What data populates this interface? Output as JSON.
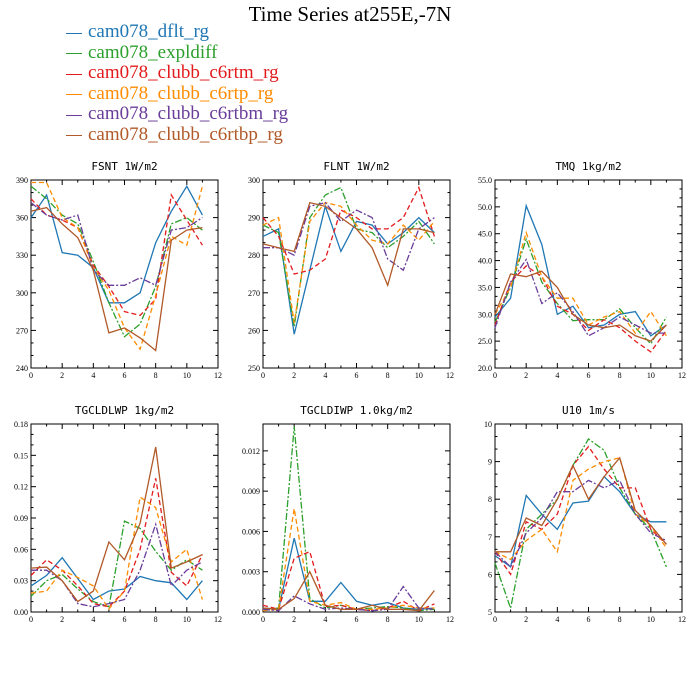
{
  "page": {
    "title": "Time Series at255E,-7N"
  },
  "legend": [
    {
      "name": "cam078_dflt_rg",
      "color": "#1f77b4",
      "dash": "solid"
    },
    {
      "name": "cam078_expldiff",
      "color": "#2ca02c",
      "dash": "dashdot"
    },
    {
      "name": "cam078_clubb_c6rtm_rg",
      "color": "#e31a1c",
      "dash": "dash"
    },
    {
      "name": "cam078_clubb_c6rtp_rg",
      "color": "#ff8c00",
      "dash": "dash"
    },
    {
      "name": "cam078_clubb_c6rtbm_rg",
      "color": "#6a3d9a",
      "dash": "dashdot"
    },
    {
      "name": "cam078_clubb_c6rtbp_rg",
      "color": "#b15928",
      "dash": "solid"
    }
  ],
  "chart_data": [
    {
      "type": "line",
      "title": "FSNT  1W/m2",
      "x": [
        0,
        1,
        2,
        3,
        4,
        5,
        6,
        7,
        8,
        9,
        10,
        11
      ],
      "xlim": [
        0,
        12
      ],
      "xticks": [
        0,
        2,
        4,
        6,
        8,
        10,
        12
      ],
      "ylim": [
        240,
        390
      ],
      "yticks": [
        240,
        270,
        300,
        330,
        360,
        390
      ],
      "yticklabels": [
        "240",
        "270",
        "300",
        "330",
        "360",
        "390"
      ],
      "series": [
        {
          "name": "cam078_dflt_rg",
          "values": [
            360,
            378,
            332,
            330,
            320,
            292,
            292,
            300,
            340,
            365,
            385,
            362
          ]
        },
        {
          "name": "cam078_expldiff",
          "values": [
            385,
            375,
            362,
            355,
            325,
            292,
            265,
            275,
            305,
            355,
            360,
            350
          ]
        },
        {
          "name": "cam078_clubb_c6rtm_rg",
          "values": [
            375,
            362,
            358,
            352,
            322,
            305,
            285,
            282,
            295,
            378,
            358,
            338
          ]
        },
        {
          "name": "cam078_clubb_c6rtp_rg",
          "values": [
            388,
            388,
            360,
            352,
            320,
            302,
            272,
            255,
            298,
            345,
            338,
            385
          ]
        },
        {
          "name": "cam078_clubb_c6rtbm_rg",
          "values": [
            372,
            362,
            358,
            362,
            318,
            306,
            306,
            312,
            306,
            350,
            352,
            360
          ]
        },
        {
          "name": "cam078_clubb_c6rtbp_rg",
          "values": [
            365,
            368,
            355,
            344,
            318,
            268,
            272,
            264,
            254,
            342,
            350,
            352
          ]
        }
      ]
    },
    {
      "type": "line",
      "title": "FLNT  1W/m2",
      "x": [
        0,
        1,
        2,
        3,
        4,
        5,
        6,
        7,
        8,
        9,
        10,
        11
      ],
      "xlim": [
        0,
        12
      ],
      "xticks": [
        0,
        2,
        4,
        6,
        8,
        10,
        12
      ],
      "ylim": [
        250,
        300
      ],
      "yticks": [
        250,
        260,
        270,
        280,
        290,
        300
      ],
      "yticklabels": [
        "250",
        "260",
        "270",
        "280",
        "290",
        "300"
      ],
      "series": [
        {
          "name": "cam078_dflt_rg",
          "values": [
            285,
            287,
            259,
            276,
            293,
            281,
            289,
            288,
            283,
            286,
            290,
            286
          ]
        },
        {
          "name": "cam078_expldiff",
          "values": [
            288,
            286,
            261,
            290,
            296,
            298,
            287,
            286,
            282,
            285,
            289,
            283
          ]
        },
        {
          "name": "cam078_clubb_c6rtm_rg",
          "values": [
            290,
            285,
            275,
            276,
            279,
            292,
            290,
            287,
            287,
            290,
            298,
            285
          ]
        },
        {
          "name": "cam078_clubb_c6rtp_rg",
          "values": [
            288,
            290,
            262,
            289,
            294,
            293,
            288,
            284,
            283,
            288,
            284,
            289
          ]
        },
        {
          "name": "cam078_clubb_c6rtbm_rg",
          "values": [
            282,
            282,
            280,
            293,
            294,
            289,
            292,
            290,
            279,
            276,
            287,
            290
          ]
        },
        {
          "name": "cam078_clubb_c6rtbp_rg",
          "values": [
            283,
            282,
            281,
            294,
            293,
            290,
            287,
            282,
            272,
            287,
            287,
            286
          ]
        }
      ]
    },
    {
      "type": "line",
      "title": "TMQ  1kg/m2",
      "x": [
        0,
        1,
        2,
        3,
        4,
        5,
        6,
        7,
        8,
        9,
        10,
        11
      ],
      "xlim": [
        0,
        12
      ],
      "xticks": [
        0,
        2,
        4,
        6,
        8,
        10,
        12
      ],
      "ylim": [
        20,
        55
      ],
      "yticks": [
        20,
        25,
        30,
        35,
        40,
        45,
        50,
        55
      ],
      "yticklabels": [
        "20.0",
        "25.0",
        "30.0",
        "35.0",
        "40.0",
        "45.0",
        "50.0",
        "55.0"
      ],
      "series": [
        {
          "name": "cam078_dflt_rg",
          "values": [
            29.5,
            33,
            50.2,
            43,
            30,
            31.5,
            27.5,
            28,
            30,
            30.5,
            26,
            28
          ]
        },
        {
          "name": "cam078_expldiff",
          "values": [
            28.5,
            35,
            44,
            36,
            32,
            28.8,
            29,
            29,
            31,
            27.5,
            24.5,
            29.5
          ]
        },
        {
          "name": "cam078_clubb_c6rtm_rg",
          "values": [
            28,
            36,
            39,
            37,
            31.5,
            30,
            27,
            29,
            27.5,
            25,
            23,
            27
          ]
        },
        {
          "name": "cam078_clubb_c6rtp_rg",
          "values": [
            30,
            35,
            45.2,
            37,
            33,
            33,
            28,
            29.5,
            30.5,
            26.5,
            30.5,
            26
          ]
        },
        {
          "name": "cam078_clubb_c6rtbm_rg",
          "values": [
            27.5,
            36,
            40.2,
            32,
            34,
            30.5,
            26,
            27.5,
            29.5,
            28,
            26.5,
            26.5
          ]
        },
        {
          "name": "cam078_clubb_c6rtbp_rg",
          "values": [
            30,
            37.5,
            37,
            38,
            35,
            30,
            28,
            27.5,
            28,
            26,
            25,
            28
          ]
        }
      ]
    },
    {
      "type": "line",
      "title": "TGCLDLWP  1kg/m2",
      "x": [
        0,
        1,
        2,
        3,
        4,
        5,
        6,
        7,
        8,
        9,
        10,
        11
      ],
      "xlim": [
        0,
        12
      ],
      "xticks": [
        0,
        2,
        4,
        6,
        8,
        10,
        12
      ],
      "ylim": [
        0,
        0.18
      ],
      "yticks": [
        0,
        0.03,
        0.06,
        0.09,
        0.12,
        0.15,
        0.18
      ],
      "yticklabels": [
        "0.00",
        "0.03",
        "0.06",
        "0.09",
        "0.12",
        "0.15",
        "0.18"
      ],
      "series": [
        {
          "name": "cam078_dflt_rg",
          "values": [
            0.025,
            0.035,
            0.052,
            0.032,
            0.012,
            0.02,
            0.022,
            0.034,
            0.03,
            0.028,
            0.012,
            0.03
          ]
        },
        {
          "name": "cam078_expldiff",
          "values": [
            0.015,
            0.03,
            0.036,
            0.022,
            0.01,
            0.005,
            0.087,
            0.08,
            0.058,
            0.04,
            0.05,
            0.04
          ]
        },
        {
          "name": "cam078_clubb_c6rtm_rg",
          "values": [
            0.035,
            0.05,
            0.04,
            0.025,
            0.008,
            0.005,
            0.02,
            0.06,
            0.128,
            0.038,
            0.025,
            0.055
          ]
        },
        {
          "name": "cam078_clubb_c6rtp_rg",
          "values": [
            0.018,
            0.02,
            0.04,
            0.033,
            0.025,
            0.003,
            0.02,
            0.11,
            0.1,
            0.048,
            0.06,
            0.012
          ]
        },
        {
          "name": "cam078_clubb_c6rtbm_rg",
          "values": [
            0.04,
            0.04,
            0.03,
            0.008,
            0.005,
            0.008,
            0.012,
            0.04,
            0.084,
            0.025,
            0.04,
            0.048
          ]
        },
        {
          "name": "cam078_clubb_c6rtbp_rg",
          "values": [
            0.042,
            0.043,
            0.03,
            0.01,
            0.02,
            0.067,
            0.05,
            0.085,
            0.158,
            0.042,
            0.048,
            0.055
          ]
        }
      ]
    },
    {
      "type": "line",
      "title": "TGCLDIWP  1.0kg/m2",
      "x": [
        0,
        1,
        2,
        3,
        4,
        5,
        6,
        7,
        8,
        9,
        10,
        11
      ],
      "xlim": [
        0,
        12
      ],
      "xticks": [
        0,
        2,
        4,
        6,
        8,
        10,
        12
      ],
      "ylim": [
        0,
        0.014
      ],
      "yticks": [
        0,
        0.003,
        0.006,
        0.009,
        0.012
      ],
      "yticklabels": [
        "0.000",
        "0.003",
        "0.006",
        "0.009",
        "0.012"
      ],
      "series": [
        {
          "name": "cam078_dflt_rg",
          "values": [
            0.0003,
            0.0002,
            0.0055,
            0.0008,
            0.0008,
            0.0022,
            0.0008,
            0.0005,
            0.0007,
            0.0003,
            0.0002,
            0.0003
          ]
        },
        {
          "name": "cam078_expldiff",
          "values": [
            0.0002,
            0.0003,
            0.0138,
            0.001,
            0.0003,
            0.0005,
            0.0002,
            0.0003,
            0.0004,
            0.0003,
            0.0001,
            0.0002
          ]
        },
        {
          "name": "cam078_clubb_c6rtm_rg",
          "values": [
            0.0005,
            0.0002,
            0.004,
            0.0045,
            0.0004,
            0.0005,
            0.0002,
            0.0001,
            0.0003,
            0.0008,
            0.0001,
            0.0006
          ]
        },
        {
          "name": "cam078_clubb_c6rtp_rg",
          "values": [
            0.0001,
            0.0002,
            0.0077,
            0.0008,
            0.0005,
            0.0007,
            0.0002,
            0.0002,
            0.0003,
            0.0005,
            0.0003,
            0.0003
          ]
        },
        {
          "name": "cam078_clubb_c6rtbm_rg",
          "values": [
            0.0002,
            0.0001,
            0.0012,
            0.0006,
            0.0002,
            0.0003,
            0.0002,
            0.0001,
            0.0002,
            0.0019,
            0.0003,
            0.0002
          ]
        },
        {
          "name": "cam078_clubb_c6rtbp_rg",
          "values": [
            0.0003,
            0.0002,
            0.001,
            0.003,
            0.0005,
            0.0002,
            0.0002,
            0.0005,
            0.0002,
            0.0002,
            0.0001,
            0.0016
          ]
        }
      ]
    },
    {
      "type": "line",
      "title": "U10  1m/s",
      "x": [
        0,
        1,
        2,
        3,
        4,
        5,
        6,
        7,
        8,
        9,
        10,
        11
      ],
      "xlim": [
        0,
        12
      ],
      "xticks": [
        0,
        2,
        4,
        6,
        8,
        10,
        12
      ],
      "ylim": [
        5,
        10
      ],
      "yticks": [
        5,
        6,
        7,
        8,
        9,
        10
      ],
      "yticklabels": [
        "5",
        "6",
        "7",
        "8",
        "9",
        "10"
      ],
      "series": [
        {
          "name": "cam078_dflt_rg",
          "values": [
            6.5,
            6.2,
            8.1,
            7.6,
            7.2,
            7.9,
            7.95,
            8.6,
            8.2,
            7.6,
            7.4,
            7.4
          ]
        },
        {
          "name": "cam078_expldiff",
          "values": [
            6.3,
            5.1,
            7.2,
            7.6,
            8,
            8.9,
            9.6,
            9.3,
            8.3,
            7.6,
            7.2,
            6.2
          ]
        },
        {
          "name": "cam078_clubb_c6rtm_rg",
          "values": [
            6.6,
            6,
            7.4,
            7.2,
            7.6,
            8.9,
            9.4,
            8.8,
            8.3,
            8.3,
            7.2,
            6.8
          ]
        },
        {
          "name": "cam078_clubb_c6rtp_rg",
          "values": [
            6.6,
            6.4,
            6.9,
            7.2,
            6.6,
            8.5,
            8.8,
            9,
            9.1,
            7.6,
            7.3,
            6.7
          ]
        },
        {
          "name": "cam078_clubb_c6rtbm_rg",
          "values": [
            6.6,
            6.2,
            7.1,
            7.5,
            8.2,
            8.2,
            8.5,
            8.3,
            8.5,
            7.6,
            7.1,
            6.9
          ]
        },
        {
          "name": "cam078_clubb_c6rtbp_rg",
          "values": [
            6.6,
            6.6,
            7.5,
            7.3,
            8,
            8.9,
            8,
            8.6,
            9.1,
            7.7,
            7.3,
            6.8
          ]
        }
      ]
    }
  ]
}
